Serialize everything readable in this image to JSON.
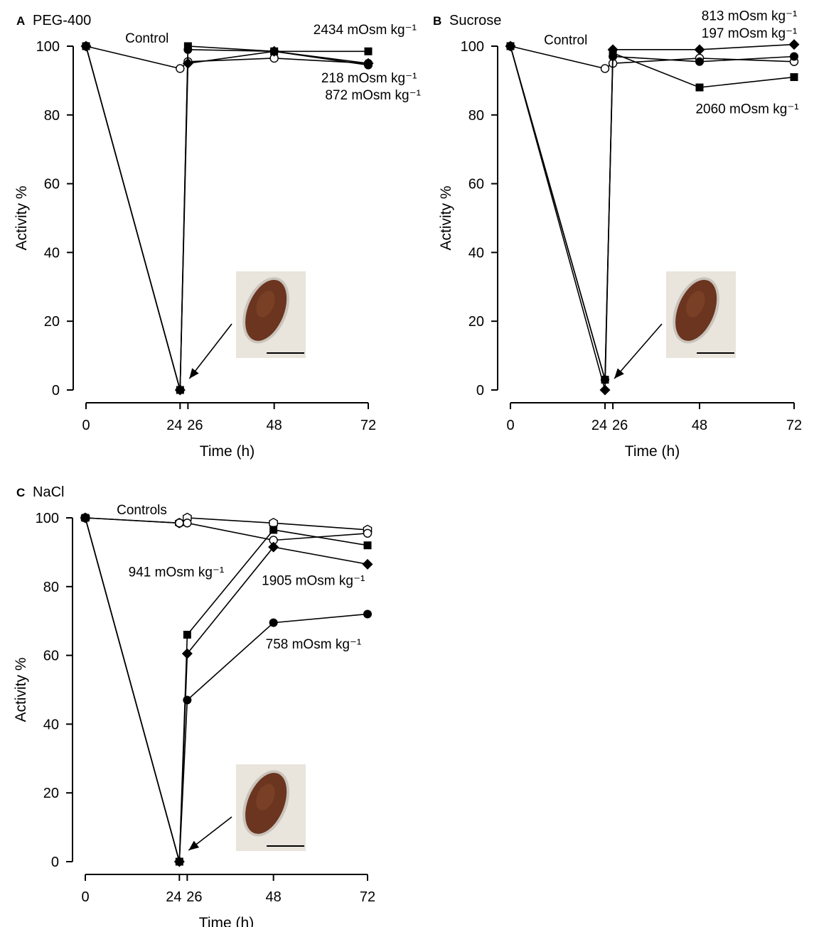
{
  "figure": {
    "inset_scale_bar": "scale bar (no length label shown)",
    "colors": {
      "ink": "#000000",
      "open_marker_fill": "#ffffff",
      "tardigrade_body": "#6b3520",
      "inset_background": "#e9e4dc"
    }
  },
  "chart_data": [
    {
      "type": "line",
      "panel_letter": "A",
      "panel_title": "PEG-400",
      "xlabel": "Time (h)",
      "ylabel": "Activity %",
      "xticks": [
        0,
        24,
        26,
        48,
        72
      ],
      "yticks": [
        0,
        20,
        40,
        60,
        80,
        100
      ],
      "xlim": [
        0,
        72
      ],
      "ylim": [
        0,
        100
      ],
      "grid": false,
      "series": [
        {
          "name": "Control",
          "marker": "open-circle",
          "x": [
            0,
            24,
            26,
            48,
            72
          ],
          "y": [
            100,
            93.5,
            95.5,
            96.5,
            95
          ]
        },
        {
          "name": "2434 mOsm kg⁻¹",
          "marker": "square",
          "x": [
            0,
            24,
            26,
            48,
            72
          ],
          "y": [
            100,
            0,
            100,
            98.5,
            98.5
          ]
        },
        {
          "name": "218 mOsm kg⁻¹",
          "marker": "diamond",
          "x": [
            0,
            24,
            26,
            48,
            72
          ],
          "y": [
            100,
            0,
            95,
            98.5,
            95
          ]
        },
        {
          "name": "872 mOsm kg⁻¹",
          "marker": "circle",
          "x": [
            0,
            24,
            26,
            48,
            72
          ],
          "y": [
            100,
            0,
            99,
            98.5,
            94.5
          ]
        }
      ],
      "annotations": [
        {
          "text": "Control",
          "x": 10,
          "y": 101
        },
        {
          "text": "2434 mOsm kg⁻¹",
          "x": 58,
          "y": 103.5
        },
        {
          "text": "218 mOsm kg⁻¹",
          "x": 60,
          "y": 89.5
        },
        {
          "text": "872 mOsm kg⁻¹",
          "x": 61,
          "y": 84.5
        }
      ]
    },
    {
      "type": "line",
      "panel_letter": "B",
      "panel_title": "Sucrose",
      "xlabel": "Time (h)",
      "ylabel": "Activity %",
      "xticks": [
        0,
        24,
        26,
        48,
        72
      ],
      "yticks": [
        0,
        20,
        40,
        60,
        80,
        100
      ],
      "xlim": [
        0,
        72
      ],
      "ylim": [
        0,
        100
      ],
      "grid": false,
      "series": [
        {
          "name": "Control",
          "marker": "open-circle",
          "x": [
            0,
            24,
            26,
            48,
            72
          ],
          "y": [
            100,
            93.5,
            95,
            96.5,
            95.5
          ]
        },
        {
          "name": "813 mOsm kg⁻¹",
          "marker": "diamond",
          "x": [
            0,
            24,
            26,
            48,
            72
          ],
          "y": [
            100,
            0,
            99,
            99,
            100.5
          ]
        },
        {
          "name": "197 mOsm kg⁻¹",
          "marker": "circle",
          "x": [
            0,
            24,
            26,
            48,
            72
          ],
          "y": [
            100,
            3,
            97,
            95.5,
            97
          ]
        },
        {
          "name": "2060 mOsm kg⁻¹",
          "marker": "square",
          "x": [
            0,
            24,
            26,
            48,
            72
          ],
          "y": [
            100,
            3,
            98,
            88,
            91
          ]
        }
      ],
      "annotations": [
        {
          "text": "Control",
          "x": 8.5,
          "y": 100.5
        },
        {
          "text": "813 mOsm kg⁻¹",
          "x": 48.5,
          "y": 107.5
        },
        {
          "text": "197 mOsm kg⁻¹",
          "x": 48.5,
          "y": 102.5
        },
        {
          "text": "2060 mOsm kg⁻¹",
          "x": 47,
          "y": 80.5
        }
      ]
    },
    {
      "type": "line",
      "panel_letter": "C",
      "panel_title": "NaCl",
      "xlabel": "Time (h)",
      "ylabel": "Activity %",
      "xticks": [
        0,
        24,
        26,
        48,
        72
      ],
      "yticks": [
        0,
        20,
        40,
        60,
        80,
        100
      ],
      "xlim": [
        0,
        72
      ],
      "ylim": [
        0,
        100
      ],
      "grid": false,
      "series": [
        {
          "name": "Controls",
          "marker": "open-hexagon",
          "x": [
            0,
            24,
            26,
            48,
            72
          ],
          "y": [
            100,
            98.5,
            100,
            98.5,
            96.5
          ]
        },
        {
          "name": "Controls",
          "marker": "open-circle",
          "x": [
            0,
            24,
            26,
            48,
            72
          ],
          "y": [
            100,
            98.5,
            98.5,
            93.5,
            95.5
          ]
        },
        {
          "name": "941 mOsm kg⁻¹",
          "marker": "square",
          "x": [
            0,
            24,
            26,
            48,
            72
          ],
          "y": [
            100,
            0,
            66,
            96.5,
            92
          ]
        },
        {
          "name": "1905 mOsm kg⁻¹",
          "marker": "diamond",
          "x": [
            0,
            24,
            26,
            48,
            72
          ],
          "y": [
            100,
            0,
            60.5,
            91.5,
            86.5
          ]
        },
        {
          "name": "758 mOsm kg⁻¹",
          "marker": "circle",
          "x": [
            0,
            24,
            26,
            48,
            72
          ],
          "y": [
            100,
            0,
            47,
            69.5,
            72
          ]
        }
      ],
      "annotations": [
        {
          "text": "Controls",
          "x": 8,
          "y": 101
        },
        {
          "text": "941 mOsm kg⁻¹",
          "x": 11,
          "y": 83
        },
        {
          "text": "1905 mOsm kg⁻¹",
          "x": 45,
          "y": 80.5
        },
        {
          "text": "758 mOsm kg⁻¹",
          "x": 46,
          "y": 62
        }
      ]
    }
  ]
}
